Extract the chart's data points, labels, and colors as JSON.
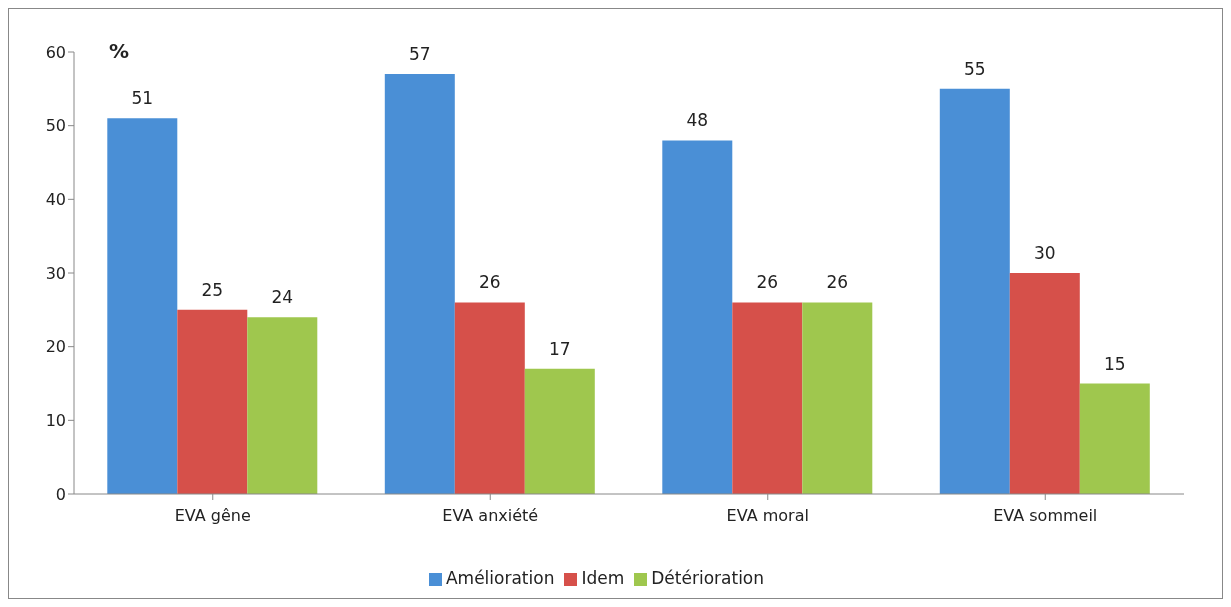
{
  "chart_data": {
    "type": "bar",
    "ylabel": "%",
    "categories": [
      "EVA gêne",
      "EVA anxiété",
      "EVA moral",
      "EVA sommeil"
    ],
    "series": [
      {
        "name": "Amélioration",
        "color": "#4a8fd6",
        "values": [
          51,
          57,
          48,
          55
        ]
      },
      {
        "name": "Idem",
        "color": "#d6504a",
        "values": [
          25,
          26,
          26,
          30
        ]
      },
      {
        "name": "Détérioration",
        "color": "#9fc74e",
        "values": [
          24,
          17,
          26,
          15
        ]
      }
    ],
    "ylim": [
      0,
      60
    ],
    "yticks": [
      0,
      10,
      20,
      30,
      40,
      50,
      60
    ],
    "grid": false,
    "legend": "bottom",
    "data_labels": true
  }
}
